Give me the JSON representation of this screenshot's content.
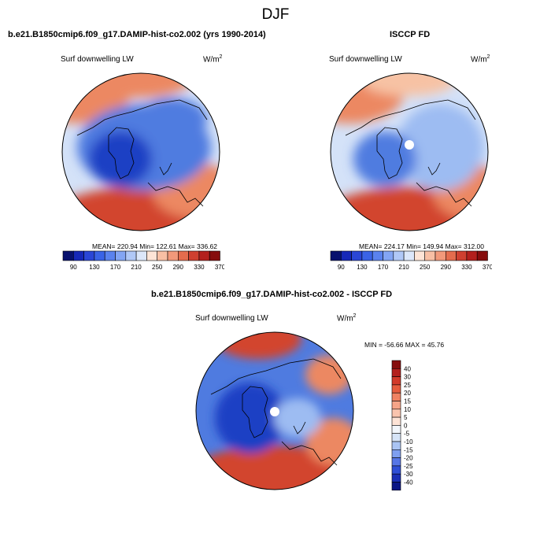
{
  "page_title": "DJF",
  "panels": [
    {
      "title": "b.e21.B1850cmip6.f09_g17.DAMIP-hist-co2.002 (yrs 1990-2014)",
      "left_label": "Surf downwelling LW",
      "units_base": "W/m",
      "units_exp": "2",
      "stats": "MEAN= 220.94  Min= 122.61  Max= 336.62"
    },
    {
      "title": "ISCCP FD",
      "left_label": "Surf downwelling LW",
      "units_base": "W/m",
      "units_exp": "2",
      "stats": "MEAN= 224.17  Min= 149.94  Max= 312.00"
    },
    {
      "title": "b.e21.B1850cmip6.f09_g17.DAMIP-hist-co2.002 - ISCCP FD",
      "left_label": "Surf downwelling LW",
      "units_base": "W/m",
      "units_exp": "2",
      "stats": "MIN = -56.66 MAX =  45.76"
    }
  ],
  "colorbar_abs": {
    "colors": [
      "#08116e",
      "#1628b8",
      "#2a46d6",
      "#3a63e6",
      "#5a82ee",
      "#83a5f4",
      "#b0c8f7",
      "#dce7fa",
      "#fde4d6",
      "#f8bfa4",
      "#f2997a",
      "#e46c4d",
      "#cf4030",
      "#b3201d",
      "#860d0d"
    ],
    "labels": [
      "90",
      "130",
      "170",
      "210",
      "250",
      "290",
      "330",
      "370"
    ]
  },
  "colorbar_diff": {
    "colors_top_to_bottom": [
      "#860d0d",
      "#b3201d",
      "#d23a2a",
      "#e65c3e",
      "#f08262",
      "#f5a488",
      "#fac4ae",
      "#fde3d6",
      "#f2f6fb",
      "#d6e4f7",
      "#aac4f3",
      "#7f9ff0",
      "#5676e6",
      "#2f4fd6",
      "#1a2fb6",
      "#0b1686"
    ],
    "labels": [
      "40",
      "30",
      "25",
      "20",
      "15",
      "10",
      "5",
      "0",
      "-5",
      "-10",
      "-15",
      "-20",
      "-25",
      "-30",
      "-40"
    ]
  },
  "map_palette": {
    "deep_blue": "#1f3fc4",
    "mid_blue": "#4f7be0",
    "light_blue": "#9dbcf2",
    "pale_blue": "#d4e2f8",
    "pale_orange": "#f7c2a4",
    "orange": "#ec8862",
    "red": "#d2452f",
    "dark_red": "#a9231b"
  }
}
